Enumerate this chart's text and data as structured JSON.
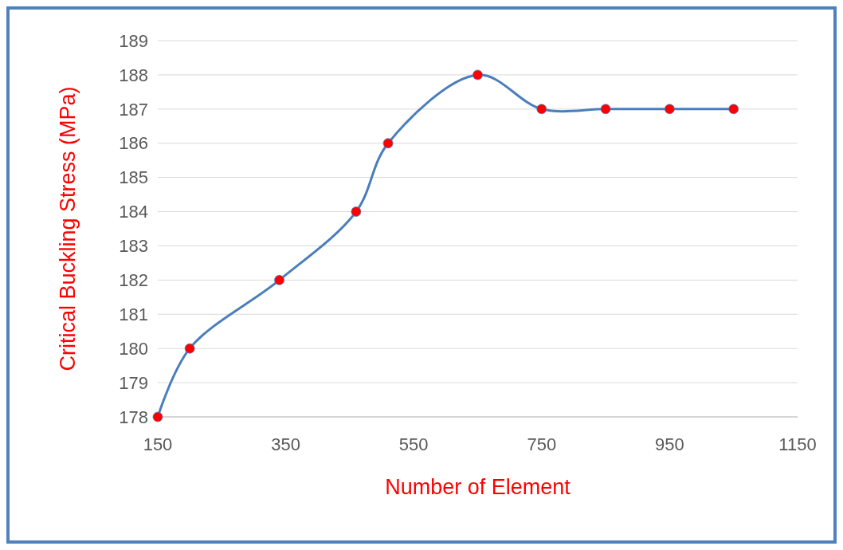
{
  "chart_data": {
    "type": "line",
    "xlabel": "Number of Element",
    "ylabel": "Critical Buckling Stress (MPa)",
    "x": [
      150,
      200,
      340,
      460,
      510,
      650,
      750,
      850,
      950,
      1050
    ],
    "series": [
      {
        "color": "#4a7ebb",
        "values": [
          178,
          180,
          182,
          184,
          186,
          188,
          187,
          187,
          187,
          187
        ]
      }
    ],
    "xlim": [
      150,
      1150
    ],
    "xticks": [
      150,
      350,
      550,
      750,
      950,
      1150
    ],
    "ylim": [
      178,
      189
    ],
    "yticks": [
      178,
      179,
      180,
      181,
      182,
      183,
      184,
      185,
      186,
      187,
      188,
      189
    ],
    "grid": "y",
    "marker": "circle",
    "line_style": "solid"
  }
}
